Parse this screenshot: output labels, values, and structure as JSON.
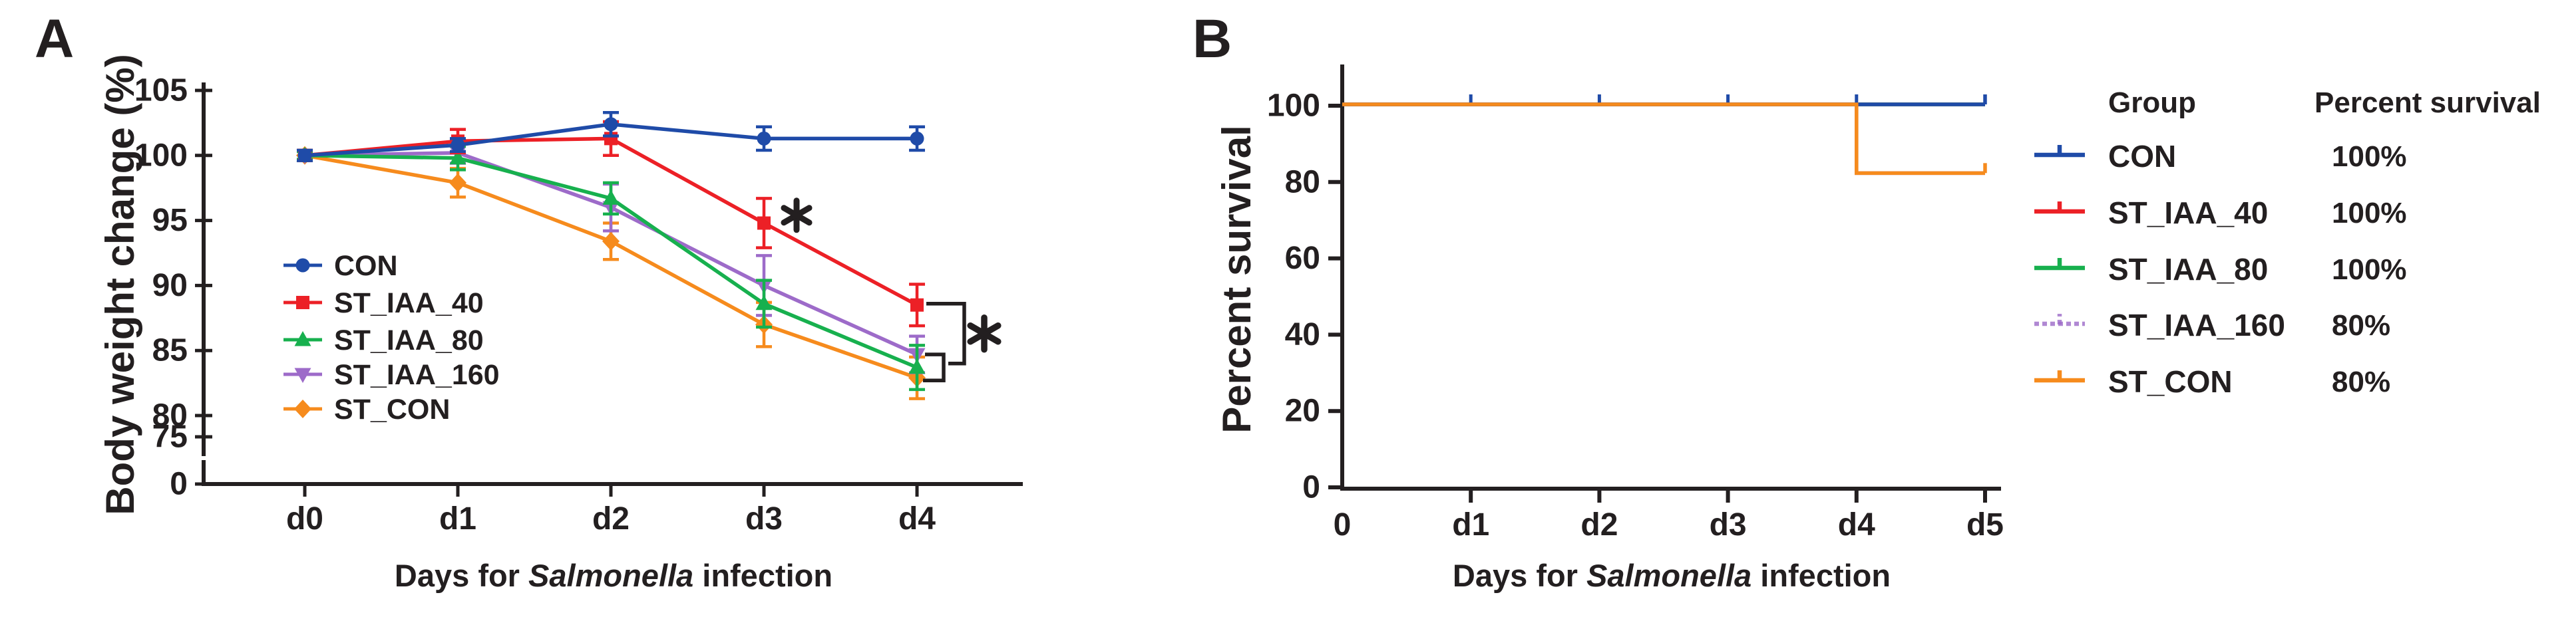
{
  "figure_titles": {
    "panel_a_label": "A",
    "panel_b_label": "B",
    "panel_a_y_title": "Body weight change (%)",
    "panel_b_y_title": "Percent survival",
    "x_title_prefix": "Days for ",
    "x_title_italic": "Salmonella",
    "x_title_suffix": " infection"
  },
  "colors": {
    "axis": "#231f20",
    "con": "#1f4ba8",
    "st_iaa_40": "#ec2026",
    "st_iaa_80": "#17b04e",
    "st_iaa_160": "#9d6bc9",
    "st_con": "#f68b1d"
  },
  "chart_data": [
    {
      "id": "A",
      "type": "line",
      "title": "",
      "xlabel": "Days for Salmonella infection",
      "ylabel": "Body weight change (%)",
      "categories": [
        "d0",
        "d1",
        "d2",
        "d3",
        "d4"
      ],
      "y_tick_labels": [
        "105",
        "100",
        "95",
        "90",
        "85",
        "80",
        "75",
        "0"
      ],
      "y_axis_break_between": [
        75,
        0
      ],
      "ylim_linear_segment": [
        75,
        105
      ],
      "grid": false,
      "series": [
        {
          "name": "CON",
          "color_key": "con",
          "marker": "circle",
          "values": [
            100,
            100.8,
            102.4,
            101.3,
            101.3
          ],
          "errors": [
            0.4,
            0.5,
            0.9,
            0.9,
            0.9
          ]
        },
        {
          "name": "ST_IAA_40",
          "color_key": "st_iaa_40",
          "marker": "square",
          "values": [
            100,
            101.1,
            101.3,
            94.8,
            88.5
          ],
          "errors": [
            0.4,
            0.9,
            1.3,
            1.9,
            1.6
          ]
        },
        {
          "name": "ST_IAA_80",
          "color_key": "st_iaa_80",
          "marker": "triangle-up",
          "values": [
            100,
            99.8,
            96.7,
            88.6,
            83.7
          ],
          "errors": [
            0.3,
            0.9,
            1.2,
            1.8,
            1.7
          ]
        },
        {
          "name": "ST_IAA_160",
          "color_key": "st_iaa_160",
          "marker": "triangle-down",
          "values": [
            100,
            100.2,
            96.0,
            90.0,
            84.7
          ],
          "errors": [
            0.3,
            0.8,
            1.8,
            2.3,
            1.4
          ]
        },
        {
          "name": "ST_CON",
          "color_key": "st_con",
          "marker": "diamond",
          "values": [
            100,
            97.9,
            93.4,
            87.0,
            82.9
          ],
          "errors": [
            0.3,
            1.1,
            1.4,
            1.7,
            1.6
          ]
        }
      ],
      "legend_position": "inside-left",
      "annotations": {
        "point_asterisk": {
          "x_category": "d3",
          "near_series": "ST_IAA_40",
          "y_value": 95.4,
          "label": "*"
        },
        "brackets": [
          {
            "x_category": "d4",
            "y_top_value": 88.6,
            "y_bottom_value": 84.0,
            "label": "*"
          },
          {
            "x_category": "d4",
            "y_top_value": 84.7,
            "y_bottom_value": 82.7,
            "label": ""
          }
        ]
      }
    },
    {
      "id": "B",
      "type": "step",
      "title": "",
      "xlabel": "Days for Salmonella infection",
      "ylabel": "Percent survival",
      "x_tick_labels": [
        "0",
        "d1",
        "d2",
        "d3",
        "d4",
        "d5"
      ],
      "y_tick_labels": [
        "100",
        "80",
        "60",
        "40",
        "20",
        "0"
      ],
      "ylim": [
        0,
        100
      ],
      "xlim_days": [
        0,
        5
      ],
      "grid": false,
      "series": [
        {
          "name": "CON",
          "color_key": "con",
          "percent_survival": "100%",
          "steps": [
            [
              0,
              100
            ],
            [
              5,
              100
            ]
          ],
          "censor_ticks_days": [
            1,
            2,
            3,
            4
          ],
          "end_tick_day": 5,
          "overlapped": false
        },
        {
          "name": "ST_IAA_40",
          "color_key": "st_iaa_40",
          "percent_survival": "100%",
          "steps": [
            [
              0,
              100
            ],
            [
              5,
              100
            ]
          ],
          "overlapped": true
        },
        {
          "name": "ST_IAA_80",
          "color_key": "st_iaa_80",
          "percent_survival": "100%",
          "steps": [
            [
              0,
              100
            ],
            [
              5,
              100
            ]
          ],
          "overlapped": true
        },
        {
          "name": "ST_IAA_160",
          "color_key": "st_iaa_160",
          "percent_survival": "80%",
          "steps": [
            [
              0,
              100
            ],
            [
              4,
              100
            ],
            [
              4,
              80
            ],
            [
              5,
              80
            ]
          ],
          "display_drop_y": 82,
          "overlapped": true
        },
        {
          "name": "ST_CON",
          "color_key": "st_con",
          "percent_survival": "80%",
          "steps": [
            [
              0,
              100
            ],
            [
              4,
              100
            ],
            [
              4,
              80
            ],
            [
              5,
              80
            ]
          ],
          "display_drop_y": 82,
          "end_tick_day": 5,
          "overlapped": false
        }
      ]
    }
  ],
  "legend_b": {
    "header_group": "Group",
    "header_percent": "Percent survival",
    "rows": [
      {
        "group": "CON",
        "percent": "100%",
        "color_key": "con",
        "dashed": false
      },
      {
        "group": "ST_IAA_40",
        "percent": "100%",
        "color_key": "st_iaa_40",
        "dashed": false
      },
      {
        "group": "ST_IAA_80",
        "percent": "100%",
        "color_key": "st_iaa_80",
        "dashed": false
      },
      {
        "group": "ST_IAA_160",
        "percent": "80%",
        "color_key": "st_iaa_160",
        "dashed": true
      },
      {
        "group": "ST_CON",
        "percent": "80%",
        "color_key": "st_con",
        "dashed": false
      }
    ]
  }
}
